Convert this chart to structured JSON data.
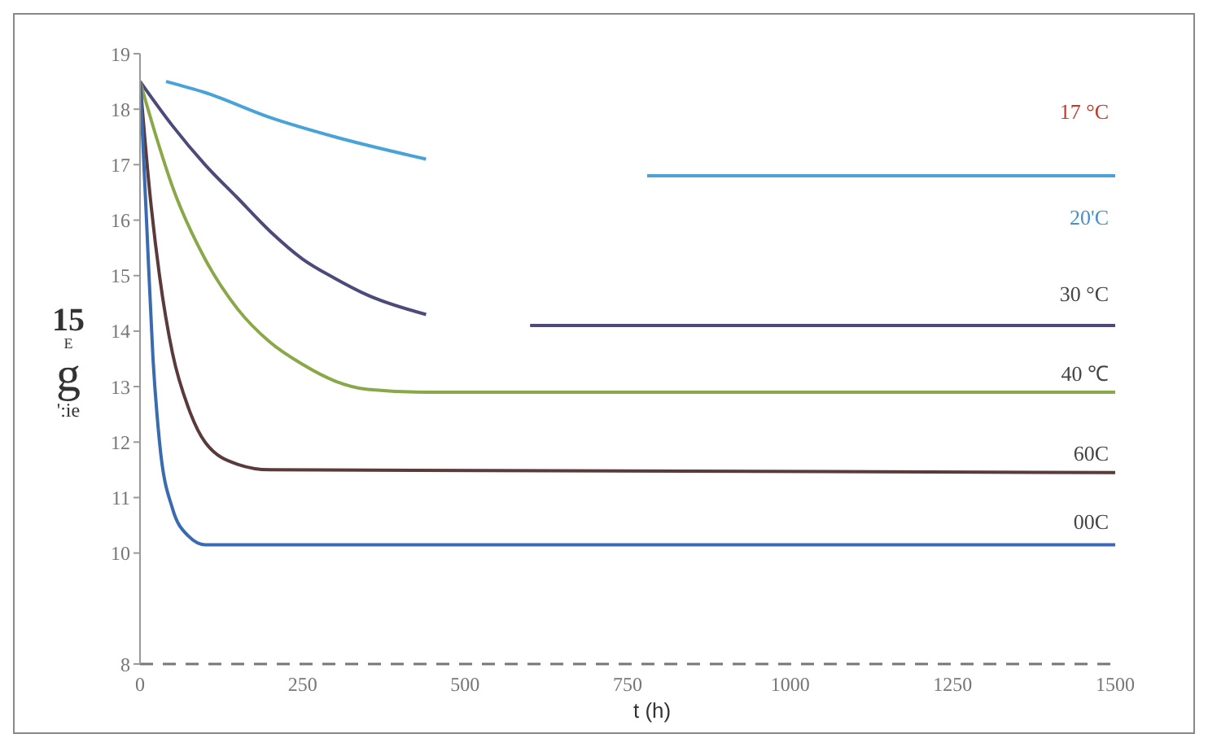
{
  "chart_data": {
    "type": "line",
    "xlabel": "t (h)",
    "xlim": [
      0,
      1500
    ],
    "xticks": [
      0,
      250,
      500,
      750,
      1000,
      1250,
      1500
    ],
    "ylim": [
      8,
      19
    ],
    "yticks": [
      8,
      10,
      11,
      12,
      13,
      14,
      15,
      16,
      17,
      18,
      19
    ],
    "grid": false,
    "marker": "none",
    "line_style": "solid",
    "series": [
      {
        "color": "#4aa3d8",
        "x": [
          40,
          100,
          200,
          300,
          440,
          600,
          780,
          1500
        ],
        "values": [
          18.5,
          18.3,
          17.85,
          17.5,
          17.1,
          null,
          16.8,
          16.8
        ]
      },
      {
        "color": "#4b4a7a",
        "x": [
          0,
          50,
          100,
          150,
          200,
          250,
          300,
          350,
          440,
          520,
          600,
          1500
        ],
        "values": [
          18.5,
          17.7,
          17.0,
          16.4,
          15.8,
          15.3,
          14.95,
          14.65,
          14.3,
          null,
          14.1,
          14.1
        ]
      },
      {
        "color": "#8aa84a",
        "x": [
          0,
          25,
          50,
          100,
          150,
          200,
          250,
          300,
          350,
          440,
          1500
        ],
        "values": [
          18.5,
          17.5,
          16.6,
          15.3,
          14.4,
          13.8,
          13.4,
          13.1,
          12.95,
          12.9,
          12.9
        ]
      },
      {
        "color": "#5a3a3a",
        "x": [
          0,
          15,
          30,
          50,
          75,
          100,
          150,
          200,
          1500
        ],
        "values": [
          18.5,
          16.5,
          15.0,
          13.6,
          12.6,
          12.0,
          11.6,
          11.5,
          11.45
        ]
      },
      {
        "color": "#3a6ab0",
        "x": [
          0,
          10,
          20,
          30,
          50,
          75,
          100,
          1500
        ],
        "values": [
          18.5,
          16.0,
          13.5,
          12.0,
          10.8,
          10.3,
          10.15,
          10.15
        ]
      }
    ],
    "ref_lines": [
      {
        "axis": "y",
        "value": 8,
        "label": null,
        "color": "#777777",
        "line_style": "dashed"
      }
    ],
    "annotations": [
      "15",
      "E",
      "g",
      "':ie",
      "17 °C",
      "20'C",
      "30 °C",
      "40 ℃",
      "60C",
      "00C"
    ]
  }
}
